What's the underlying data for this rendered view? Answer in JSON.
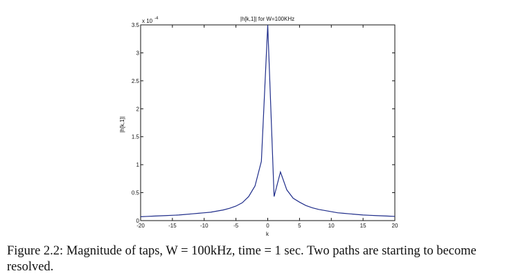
{
  "chart_data": {
    "type": "line",
    "title": "|h[k,1]| for W=100KHz",
    "xlabel": "k",
    "ylabel": "|h[k,1]|",
    "y_exponent_label": "x 10",
    "y_exponent_power": "-4",
    "xlim": [
      -20,
      20
    ],
    "ylim": [
      0,
      3.5
    ],
    "xticks": [
      -20,
      -15,
      -10,
      -5,
      0,
      5,
      10,
      15,
      20
    ],
    "yticks": [
      0,
      0.5,
      1,
      1.5,
      2,
      2.5,
      3,
      3.5
    ],
    "xtick_labels": [
      "-20",
      "-15",
      "-10",
      "-5",
      "0",
      "5",
      "10",
      "15",
      "20"
    ],
    "ytick_labels": [
      "0",
      "0.5",
      "1",
      "1.5",
      "2",
      "2.5",
      "3",
      "3.5"
    ],
    "line_color": "#1f2d8a",
    "series": [
      {
        "x": [
          -20,
          -19,
          -18,
          -17,
          -16,
          -15,
          -14,
          -13,
          -12,
          -11,
          -10,
          -9,
          -8,
          -7,
          -6,
          -5,
          -4,
          -3,
          -2,
          -1,
          0,
          1,
          2,
          3,
          4,
          5,
          6,
          7,
          8,
          9,
          10,
          11,
          12,
          13,
          14,
          15,
          16,
          17,
          18,
          19,
          20
        ],
        "y": [
          0.07,
          0.075,
          0.08,
          0.085,
          0.09,
          0.095,
          0.1,
          0.11,
          0.12,
          0.13,
          0.14,
          0.15,
          0.17,
          0.19,
          0.22,
          0.26,
          0.32,
          0.43,
          0.62,
          1.06,
          3.5,
          0.43,
          0.87,
          0.55,
          0.4,
          0.33,
          0.27,
          0.23,
          0.2,
          0.18,
          0.16,
          0.14,
          0.13,
          0.12,
          0.11,
          0.1,
          0.095,
          0.09,
          0.085,
          0.08,
          0.075
        ]
      }
    ]
  },
  "caption": {
    "text": "Figure 2.2: Magnitude of taps, W = 100kHz, time = 1 sec. Two paths are starting to become resolved."
  }
}
